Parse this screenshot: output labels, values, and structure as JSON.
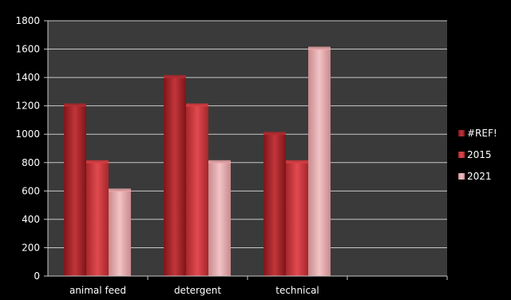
{
  "chart_data": {
    "type": "bar",
    "categories": [
      "animal feed",
      "detergent",
      "technical",
      ""
    ],
    "series": [
      {
        "name": "#REF!",
        "values": [
          1200,
          1400,
          1000,
          null
        ],
        "color": "#b3262b"
      },
      {
        "name": "2015",
        "values": [
          800,
          1200,
          800,
          null
        ],
        "color": "#d8373c"
      },
      {
        "name": "2021",
        "values": [
          600,
          800,
          1600,
          null
        ],
        "color": "#e8a3a6"
      }
    ],
    "yticks": [
      "0",
      "200",
      "400",
      "600",
      "800",
      "1000",
      "1200",
      "1400",
      "1600",
      "1800"
    ],
    "ylim": [
      0,
      1800
    ],
    "grid": true,
    "legend_position": "right",
    "colors": {
      "background": "#000000",
      "plot_area": "#3a3a3a",
      "grid": "#c8c8c8",
      "text": "#ffffff"
    }
  }
}
